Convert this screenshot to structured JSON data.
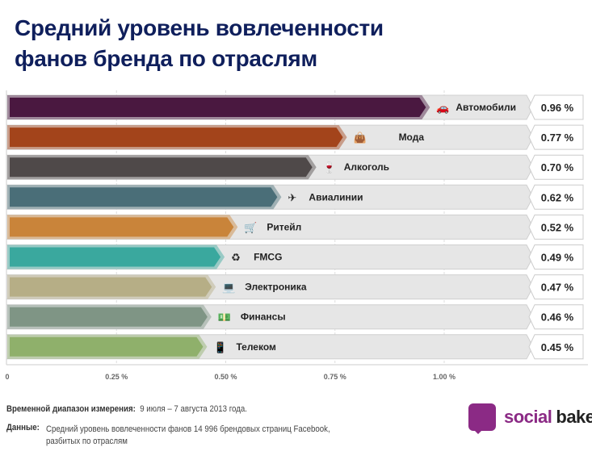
{
  "title_lines": [
    "Средний уровень вовлеченности",
    "фанов бренда по отраслям"
  ],
  "chart_data": {
    "type": "bar",
    "orientation": "horizontal",
    "title": "Средний уровень вовлеченности фанов бренда по отраслям",
    "categories": [
      "Автомобили",
      "Мода",
      "Алкоголь",
      "Авиалинии",
      "Ритейл",
      "FMCG",
      "Электроника",
      "Финансы",
      "Телеком"
    ],
    "values": [
      0.96,
      0.77,
      0.7,
      0.62,
      0.52,
      0.49,
      0.47,
      0.46,
      0.45
    ],
    "value_labels": [
      "0.96 %",
      "0.77 %",
      "0.70 %",
      "0.62 %",
      "0.52 %",
      "0.49 %",
      "0.47 %",
      "0.46 %",
      "0.45 %"
    ],
    "icons": [
      "car-icon",
      "handbag-icon",
      "wine-glass-icon",
      "airplane-icon",
      "shopping-cart-icon",
      "fmcg-icon",
      "laptop-icon",
      "money-icon",
      "mobile-phone-icon"
    ],
    "colors": [
      "#4a1840",
      "#a3441b",
      "#4f4949",
      "#4a6e78",
      "#c9843a",
      "#3aa89e",
      "#b6ae86",
      "#7f9585",
      "#8fb06b"
    ],
    "xlim": [
      0,
      1.32
    ],
    "xticks": [
      0,
      0.25,
      0.5,
      0.75,
      1.0
    ],
    "xtick_labels": [
      "0",
      "0.25 %",
      "0.50 %",
      "0.75 %",
      "1.00 %"
    ],
    "grid": true
  },
  "footer": {
    "period_label": "Временной диапазон измерения:",
    "period_value": "9 июля – 7 августа 2013 года.",
    "data_label": "Данные:",
    "data_value_1": "Средний уровень вовлеченности фанов 14 996 брендовых страниц Facebook,",
    "data_value_2": "разбитых по отраслям"
  },
  "logo": {
    "text_a": "social",
    "text_b": "bakers",
    "color_a": "#8b2a85"
  }
}
